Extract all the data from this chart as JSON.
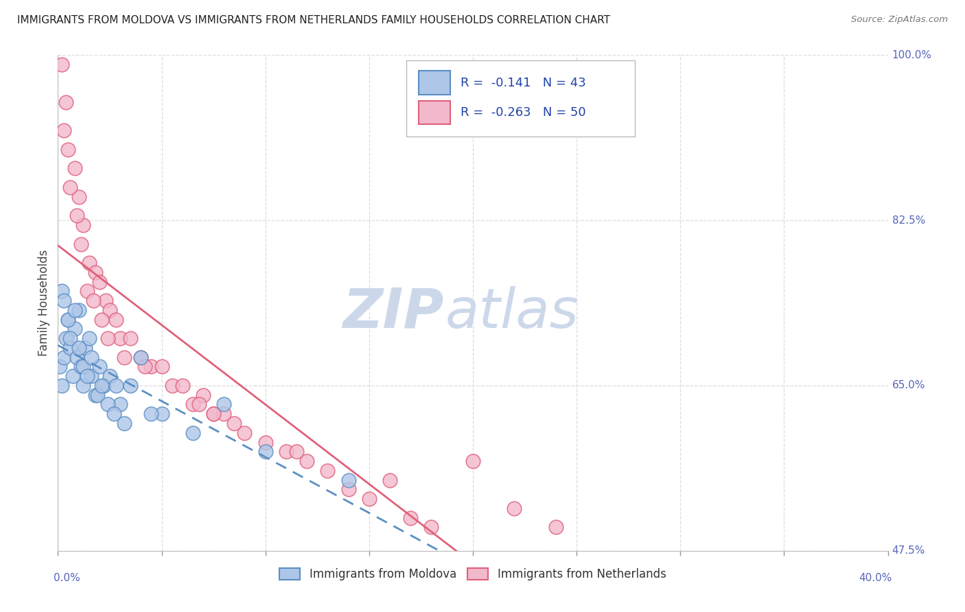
{
  "title": "IMMIGRANTS FROM MOLDOVA VS IMMIGRANTS FROM NETHERLANDS FAMILY HOUSEHOLDS CORRELATION CHART",
  "source": "Source: ZipAtlas.com",
  "ylabel_label": "Family Households",
  "legend_label1": "Immigrants from Moldova",
  "legend_label2": "Immigrants from Netherlands",
  "R1": -0.141,
  "N1": 43,
  "R2": -0.263,
  "N2": 50,
  "watermark_zip": "ZIP",
  "watermark_atlas": "atlas",
  "color_moldova": "#aec6e8",
  "color_netherlands": "#f2b8cc",
  "color_line_moldova": "#5b8ec4",
  "color_line_netherlands": "#e0607a",
  "moldova_x": [
    0.1,
    0.2,
    0.3,
    0.4,
    0.5,
    0.6,
    0.7,
    0.8,
    0.9,
    1.0,
    1.1,
    1.2,
    1.3,
    1.5,
    1.6,
    1.8,
    2.0,
    2.2,
    2.5,
    2.8,
    3.0,
    3.5,
    4.0,
    5.0,
    6.5,
    8.0,
    10.0,
    0.2,
    0.3,
    0.5,
    0.6,
    0.8,
    1.0,
    1.2,
    1.4,
    1.6,
    1.9,
    2.1,
    2.4,
    2.7,
    3.2,
    14.0,
    4.5
  ],
  "moldova_y": [
    67,
    65,
    68,
    70,
    72,
    69,
    66,
    71,
    68,
    73,
    67,
    65,
    69,
    70,
    66,
    64,
    67,
    65,
    66,
    65,
    63,
    65,
    68,
    62,
    60,
    63,
    58,
    75,
    74,
    72,
    70,
    73,
    69,
    67,
    66,
    68,
    64,
    65,
    63,
    62,
    61,
    55,
    62
  ],
  "netherlands_x": [
    0.2,
    0.4,
    0.5,
    0.8,
    1.0,
    1.2,
    1.5,
    1.8,
    2.0,
    2.3,
    2.5,
    2.8,
    3.0,
    3.5,
    4.0,
    4.5,
    5.0,
    5.5,
    6.0,
    6.5,
    7.0,
    7.5,
    8.0,
    9.0,
    10.0,
    11.0,
    12.0,
    13.0,
    14.0,
    15.0,
    16.0,
    17.0,
    18.0,
    20.0,
    22.0,
    0.3,
    0.6,
    0.9,
    1.1,
    1.4,
    1.7,
    2.1,
    2.4,
    3.2,
    4.2,
    6.8,
    8.5,
    11.5,
    7.5,
    24.0
  ],
  "netherlands_y": [
    99,
    95,
    90,
    88,
    85,
    82,
    78,
    77,
    76,
    74,
    73,
    72,
    70,
    70,
    68,
    67,
    67,
    65,
    65,
    63,
    64,
    62,
    62,
    60,
    59,
    58,
    57,
    56,
    54,
    53,
    55,
    51,
    50,
    57,
    52,
    92,
    86,
    83,
    80,
    75,
    74,
    72,
    70,
    68,
    67,
    63,
    61,
    58,
    62,
    50
  ],
  "xmin": 0,
  "xmax": 40,
  "ymin": 47.5,
  "ymax": 100,
  "ytick_positions": [
    47.5,
    65.0,
    82.5,
    100.0
  ],
  "ytick_labels": [
    "47.5%",
    "65.0%",
    "82.5%",
    "100.0%"
  ],
  "xtick_major": [
    0,
    5,
    10,
    15,
    20,
    25,
    30,
    35,
    40
  ],
  "grid_color": "#dddddd",
  "bg_color": "#ffffff",
  "title_color": "#222222",
  "axis_label_color": "#5566bb",
  "watermark_color": "#ccd8ea"
}
